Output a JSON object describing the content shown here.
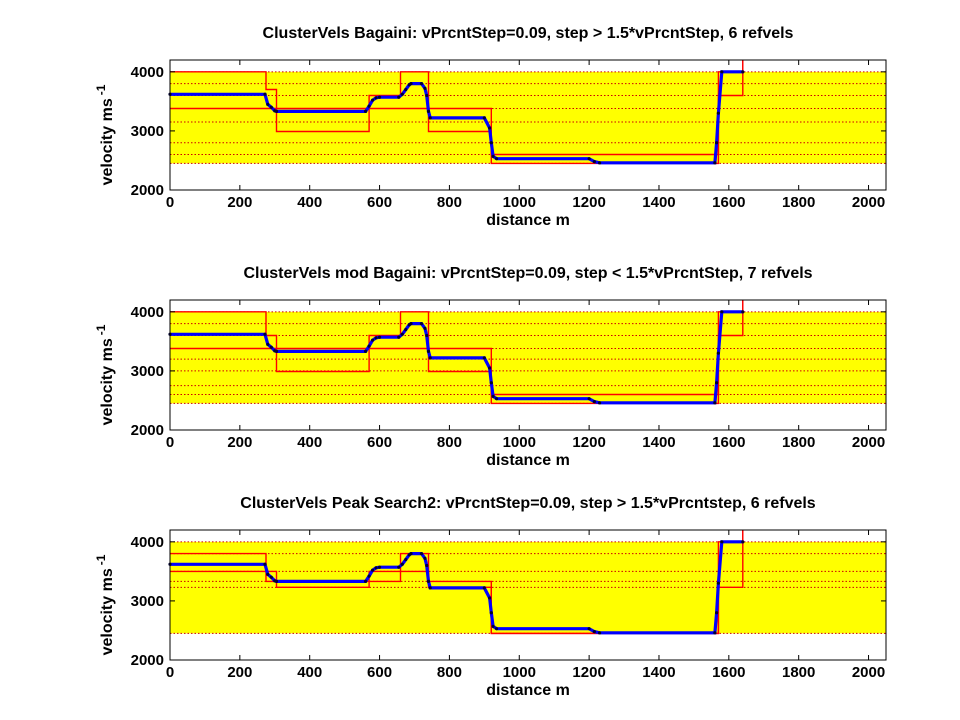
{
  "colors": {
    "band": "#ffff00",
    "bounds": "#ff0000",
    "refvel": "#cc0000",
    "velocity": "#0000ff",
    "axis": "#000000"
  },
  "chart_data": [
    {
      "type": "line",
      "title": "ClusterVels Bagaini: vPrcntStep=0.09, step > 1.5*vPrcntStep, 6 refvels",
      "xlabel": "distance m",
      "ylabel": "velocity ms",
      "ylabel_sup": "-1",
      "xlim": [
        0,
        2050
      ],
      "ylim": [
        2000,
        4200
      ],
      "xticks": [
        "0",
        "200",
        "400",
        "600",
        "800",
        "1000",
        "1200",
        "1400",
        "1600",
        "1800",
        "2000"
      ],
      "yticks": [
        "2000",
        "3000",
        "4000"
      ],
      "band": [
        2450,
        4000
      ],
      "refvels": [
        2450,
        2600,
        2800,
        3150,
        3380,
        3600,
        3800,
        4000
      ],
      "series": [
        {
          "role": "upper",
          "x": [
            0,
            275,
            275,
            305,
            305,
            570,
            570,
            660,
            660,
            740,
            740,
            920,
            920,
            1570,
            1570,
            1640,
            1640
          ],
          "y": [
            4000,
            4000,
            3700,
            3700,
            3380,
            3380,
            3600,
            3600,
            4000,
            4000,
            3380,
            3380,
            2600,
            2600,
            4000,
            4000,
            4200
          ]
        },
        {
          "role": "lower",
          "x": [
            0,
            275,
            275,
            305,
            305,
            570,
            570,
            660,
            660,
            740,
            740,
            920,
            920,
            1570,
            1570,
            1640,
            1640
          ],
          "y": [
            3380,
            3380,
            3380,
            3380,
            2990,
            2990,
            3380,
            3380,
            3380,
            3380,
            2990,
            2990,
            2450,
            2450,
            3600,
            3600,
            4200
          ]
        },
        {
          "role": "velocity",
          "x": [
            0,
            272,
            280,
            290,
            300,
            305,
            560,
            570,
            580,
            590,
            600,
            655,
            665,
            675,
            685,
            690,
            720,
            730,
            735,
            740,
            745,
            900,
            915,
            920,
            925,
            935,
            1200,
            1215,
            1230,
            1560,
            1565,
            1570,
            1580,
            1640
          ],
          "y": [
            3620,
            3620,
            3450,
            3400,
            3340,
            3330,
            3330,
            3420,
            3520,
            3560,
            3570,
            3570,
            3620,
            3700,
            3780,
            3800,
            3800,
            3720,
            3600,
            3330,
            3220,
            3220,
            3050,
            2800,
            2570,
            2530,
            2530,
            2480,
            2460,
            2460,
            2800,
            3300,
            4000,
            4000
          ]
        }
      ]
    },
    {
      "type": "line",
      "title": "ClusterVels mod Bagaini: vPrcntStep=0.09, step < 1.5*vPrcntStep, 7 refvels",
      "xlabel": "distance m",
      "ylabel": "velocity ms",
      "ylabel_sup": "-1",
      "xlim": [
        0,
        2050
      ],
      "ylim": [
        2000,
        4200
      ],
      "xticks": [
        "0",
        "200",
        "400",
        "600",
        "800",
        "1000",
        "1200",
        "1400",
        "1600",
        "1800",
        "2000"
      ],
      "yticks": [
        "2000",
        "3000",
        "4000"
      ],
      "band": [
        2450,
        4000
      ],
      "refvels": [
        2450,
        2600,
        2750,
        3000,
        3200,
        3380,
        3600,
        3800,
        4000
      ],
      "series": [
        {
          "role": "upper",
          "x": [
            0,
            275,
            275,
            305,
            305,
            570,
            570,
            660,
            660,
            740,
            740,
            920,
            920,
            1570,
            1570,
            1640,
            1640
          ],
          "y": [
            4000,
            4000,
            3600,
            3600,
            3380,
            3380,
            3600,
            3600,
            4000,
            4000,
            3380,
            3380,
            2600,
            2600,
            4000,
            4000,
            4200
          ]
        },
        {
          "role": "lower",
          "x": [
            0,
            275,
            275,
            305,
            305,
            570,
            570,
            660,
            660,
            740,
            740,
            920,
            920,
            1570,
            1570,
            1640,
            1640
          ],
          "y": [
            3380,
            3380,
            3380,
            3380,
            2990,
            2990,
            3380,
            3380,
            3380,
            3380,
            2990,
            2990,
            2450,
            2450,
            3600,
            3600,
            4200
          ]
        },
        {
          "role": "velocity",
          "x": [
            0,
            272,
            280,
            290,
            300,
            305,
            560,
            570,
            580,
            590,
            600,
            655,
            665,
            675,
            685,
            690,
            720,
            730,
            735,
            740,
            745,
            900,
            915,
            920,
            925,
            935,
            1200,
            1215,
            1230,
            1560,
            1565,
            1570,
            1580,
            1640
          ],
          "y": [
            3620,
            3620,
            3450,
            3400,
            3340,
            3330,
            3330,
            3420,
            3520,
            3560,
            3570,
            3570,
            3620,
            3700,
            3780,
            3800,
            3800,
            3720,
            3600,
            3330,
            3220,
            3220,
            3050,
            2800,
            2570,
            2530,
            2530,
            2480,
            2460,
            2460,
            2800,
            3300,
            4000,
            4000
          ]
        }
      ]
    },
    {
      "type": "line",
      "title": "ClusterVels Peak Search2: vPrcntStep=0.09, step > 1.5*vPrcntstep, 6 refvels",
      "xlabel": "distance m",
      "ylabel": "velocity ms",
      "ylabel_sup": "-1",
      "xlim": [
        0,
        2050
      ],
      "ylim": [
        2000,
        4200
      ],
      "xticks": [
        "0",
        "200",
        "400",
        "600",
        "800",
        "1000",
        "1200",
        "1400",
        "1600",
        "1800",
        "2000"
      ],
      "yticks": [
        "2000",
        "3000",
        "4000"
      ],
      "band": [
        2450,
        4000
      ],
      "refvels": [
        2450,
        3230,
        3330,
        3500,
        3800,
        4000
      ],
      "series": [
        {
          "role": "upper",
          "x": [
            0,
            275,
            275,
            305,
            305,
            570,
            570,
            660,
            660,
            740,
            740,
            920,
            920,
            1570,
            1570,
            1640,
            1640
          ],
          "y": [
            3800,
            3800,
            3500,
            3500,
            3330,
            3330,
            3500,
            3500,
            3800,
            3800,
            3330,
            3330,
            2450,
            2450,
            4000,
            4000,
            4200
          ]
        },
        {
          "role": "lower",
          "x": [
            0,
            275,
            275,
            305,
            305,
            570,
            570,
            660,
            660,
            740,
            740,
            920,
            920,
            1570,
            1570,
            1640,
            1640
          ],
          "y": [
            3500,
            3500,
            3330,
            3330,
            3230,
            3230,
            3330,
            3330,
            3500,
            3500,
            3230,
            3230,
            2450,
            2450,
            3230,
            3230,
            4200
          ]
        },
        {
          "role": "velocity",
          "x": [
            0,
            272,
            280,
            290,
            300,
            305,
            560,
            570,
            580,
            590,
            600,
            655,
            665,
            675,
            685,
            690,
            720,
            730,
            735,
            740,
            745,
            900,
            915,
            920,
            925,
            935,
            1200,
            1215,
            1230,
            1560,
            1565,
            1570,
            1580,
            1640
          ],
          "y": [
            3620,
            3620,
            3450,
            3400,
            3340,
            3330,
            3330,
            3420,
            3520,
            3560,
            3570,
            3570,
            3620,
            3700,
            3780,
            3800,
            3800,
            3720,
            3600,
            3330,
            3220,
            3220,
            3050,
            2800,
            2570,
            2530,
            2530,
            2480,
            2460,
            2460,
            2800,
            3300,
            4000,
            4000
          ]
        }
      ]
    }
  ]
}
